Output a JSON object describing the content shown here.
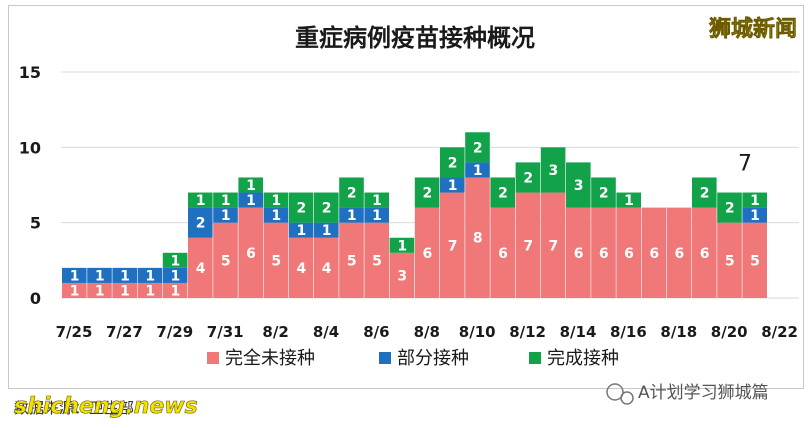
{
  "watermark_top_right": "狮城新闻",
  "watermark_bottom_left": "shicheng.news",
  "footer_source": "数据来源：卫生部",
  "wechat_account": "A计划学习狮城篇",
  "colors": {
    "unvaccinated": "#f07878",
    "partial": "#1f70c1",
    "full": "#12a24a"
  },
  "chart_data": {
    "type": "bar",
    "stacked": true,
    "title": "重症病例疫苗接种概况",
    "xlabel": "",
    "ylabel": "",
    "ylim": [
      0,
      15
    ],
    "yticks": [
      "0",
      "5",
      "10",
      "15"
    ],
    "grid": true,
    "legend_position": "bottom",
    "categories": [
      "7/25",
      "7/26",
      "7/27",
      "7/28",
      "7/29",
      "7/30",
      "7/31",
      "8/1",
      "8/2",
      "8/3",
      "8/4",
      "8/5",
      "8/6",
      "8/7",
      "8/8",
      "8/9",
      "8/10",
      "8/11",
      "8/12",
      "8/13",
      "8/14",
      "8/15",
      "8/16",
      "8/17",
      "8/18",
      "8/19",
      "8/20",
      "8/21"
    ],
    "tick_labels": [
      "7/25",
      "7/27",
      "7/29",
      "7/31",
      "8/2",
      "8/4",
      "8/6",
      "8/8",
      "8/10",
      "8/12",
      "8/14",
      "8/16",
      "8/18",
      "8/20",
      "8/22"
    ],
    "series": [
      {
        "name": "完全未接种",
        "values": [
          1,
          1,
          1,
          1,
          1,
          4,
          5,
          6,
          5,
          4,
          4,
          5,
          5,
          3,
          6,
          7,
          8,
          6,
          7,
          7,
          6,
          6,
          6,
          6,
          6,
          6,
          5,
          5
        ]
      },
      {
        "name": "部分接种",
        "values": [
          1,
          1,
          1,
          1,
          1,
          2,
          1,
          1,
          1,
          1,
          1,
          1,
          1,
          0,
          0,
          1,
          1,
          0,
          0,
          0,
          0,
          0,
          0,
          0,
          0,
          0,
          0,
          1
        ]
      },
      {
        "name": "完成接种",
        "values": [
          0,
          0,
          0,
          0,
          1,
          1,
          1,
          1,
          1,
          2,
          2,
          2,
          1,
          1,
          2,
          2,
          2,
          2,
          2,
          3,
          3,
          2,
          1,
          0,
          0,
          2,
          2,
          1
        ]
      }
    ],
    "annotations": [
      {
        "category": "8/21",
        "text": "7"
      }
    ]
  }
}
